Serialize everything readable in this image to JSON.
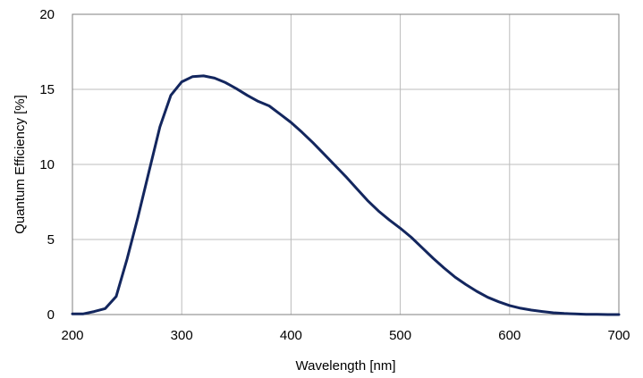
{
  "chart_data": {
    "type": "line",
    "title": "",
    "xlabel": "Wavelength [nm]",
    "ylabel": "Quantum Efficiency [%]",
    "xlim": [
      200,
      700
    ],
    "ylim": [
      0,
      20
    ],
    "xticks": [
      200,
      300,
      400,
      500,
      600,
      700
    ],
    "yticks": [
      0,
      5,
      10,
      15,
      20
    ],
    "grid": true,
    "legend": "none",
    "series": [
      {
        "color": "#13265e",
        "x": [
          200,
          210,
          220,
          230,
          240,
          250,
          260,
          270,
          280,
          290,
          300,
          310,
          320,
          330,
          340,
          350,
          360,
          370,
          380,
          390,
          400,
          410,
          420,
          430,
          440,
          450,
          460,
          470,
          480,
          490,
          500,
          510,
          520,
          530,
          540,
          550,
          560,
          570,
          580,
          590,
          600,
          610,
          620,
          630,
          640,
          650,
          660,
          670,
          680,
          690,
          700
        ],
        "y": [
          0.05,
          0.05,
          0.2,
          0.4,
          1.2,
          3.7,
          6.5,
          9.5,
          12.5,
          14.6,
          15.5,
          15.85,
          15.9,
          15.75,
          15.45,
          15.05,
          14.6,
          14.2,
          13.9,
          13.35,
          12.8,
          12.15,
          11.45,
          10.7,
          9.95,
          9.2,
          8.4,
          7.6,
          6.9,
          6.3,
          5.75,
          5.15,
          4.45,
          3.75,
          3.1,
          2.5,
          2.0,
          1.55,
          1.15,
          0.85,
          0.6,
          0.42,
          0.3,
          0.2,
          0.12,
          0.07,
          0.04,
          0.02,
          0.01,
          0.0,
          0.0
        ]
      }
    ]
  }
}
